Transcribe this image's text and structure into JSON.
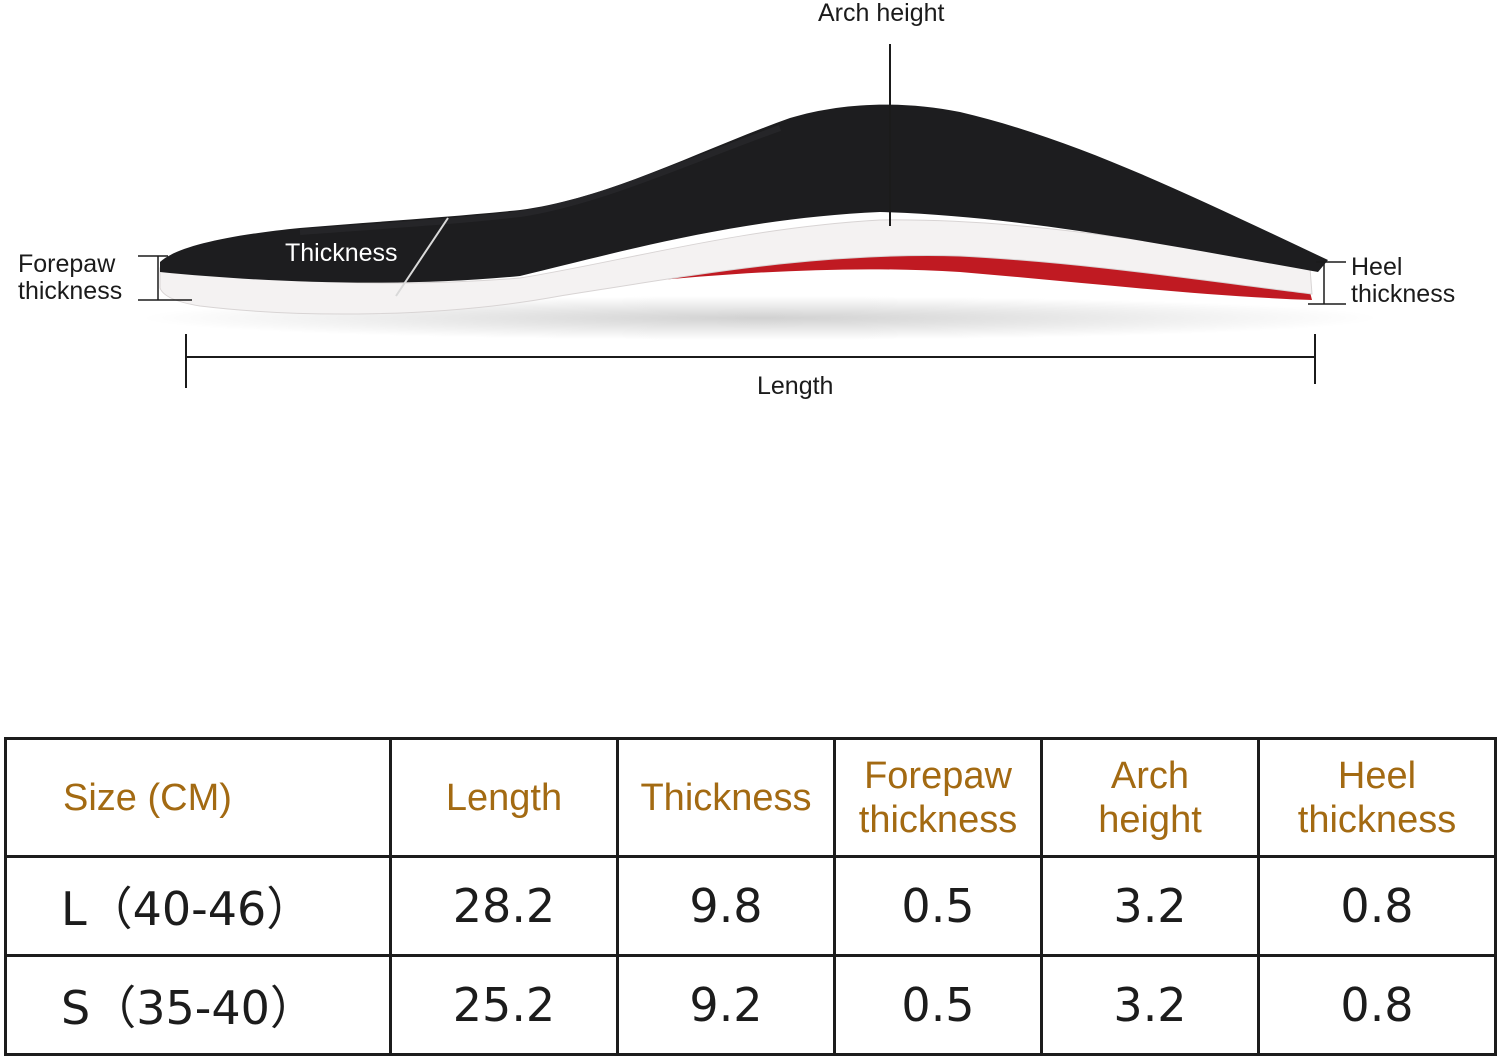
{
  "diagram": {
    "labels": {
      "arch_height": "Arch height",
      "thickness": "Thickness",
      "forepaw_line1": "Forepaw",
      "forepaw_line2": "thickness",
      "heel_line1": "Heel",
      "heel_line2": "thickness",
      "length": "Length"
    },
    "colors": {
      "top_layer": "#1d1d1f",
      "foam_layer": "#f4f2f2",
      "shell": "#c01a22"
    }
  },
  "table": {
    "headers": {
      "size": "Size (CM)",
      "length": "Length",
      "thickness": "Thickness",
      "forepaw_line1": "Forepaw",
      "forepaw_line2": "thickness",
      "arch_line1": "Arch",
      "arch_line2": "height",
      "heel_line1": "Heel",
      "heel_line2": "thickness"
    },
    "header_color": "#a36a12",
    "rows": [
      {
        "size": "L（40-46）",
        "length": "28.2",
        "thickness": "9.8",
        "forepaw": "0.5",
        "arch": "3.2",
        "heel": "0.8"
      },
      {
        "size": "S（35-40）",
        "length": "25.2",
        "thickness": "9.2",
        "forepaw": "0.5",
        "arch": "3.2",
        "heel": "0.8"
      }
    ]
  }
}
